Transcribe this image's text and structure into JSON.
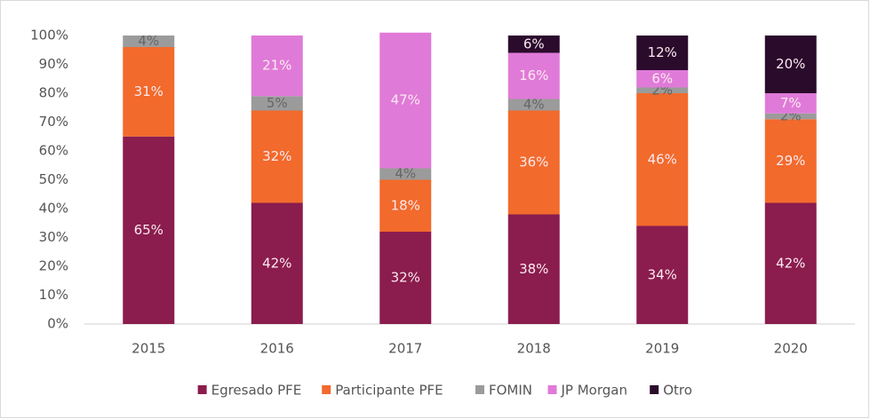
{
  "chart_data": {
    "type": "stacked_bar",
    "categories": [
      "2015",
      "2016",
      "2017",
      "2018",
      "2019",
      "2020"
    ],
    "series": [
      {
        "name": "Egresado PFE",
        "color": "#8b1c4e",
        "values": [
          65,
          42,
          32,
          38,
          34,
          42
        ],
        "value_labels": [
          "65%",
          "42%",
          "32%",
          "38%",
          "34%",
          "42%"
        ]
      },
      {
        "name": "Participante PFE",
        "color": "#f26a2c",
        "values": [
          31,
          32,
          18,
          36,
          46,
          29
        ],
        "value_labels": [
          "31%",
          "32%",
          "18%",
          "36%",
          "46%",
          "29%"
        ]
      },
      {
        "name": "FOMIN",
        "color": "#9b9b9b",
        "values": [
          4,
          5,
          4,
          4,
          2,
          2
        ],
        "value_labels": [
          "4%",
          "5%",
          "4%",
          "4%",
          "2%",
          "2%"
        ]
      },
      {
        "name": "JP Morgan",
        "color": "#e07ad8",
        "values": [
          0,
          21,
          47,
          16,
          6,
          7
        ],
        "value_labels": [
          null,
          "21%",
          "47%",
          "16%",
          "6%",
          "7%"
        ]
      },
      {
        "name": "Otro",
        "color": "#2b0b2c",
        "values": [
          0,
          0,
          0,
          6,
          12,
          20
        ],
        "value_labels": [
          null,
          null,
          null,
          "6%",
          "12%",
          "20%"
        ]
      }
    ],
    "ylim": [
      0,
      100
    ],
    "yticks": [
      {
        "value": 0,
        "label": "0%"
      },
      {
        "value": 10,
        "label": "10%"
      },
      {
        "value": 20,
        "label": "20%"
      },
      {
        "value": 30,
        "label": "30%"
      },
      {
        "value": 40,
        "label": "40%"
      },
      {
        "value": 50,
        "label": "50%"
      },
      {
        "value": 60,
        "label": "60%"
      },
      {
        "value": 70,
        "label": "70%"
      },
      {
        "value": 80,
        "label": "80%"
      },
      {
        "value": 90,
        "label": "90%"
      },
      {
        "value": 100,
        "label": "100%"
      }
    ],
    "grid": false,
    "legend": "bottom"
  }
}
